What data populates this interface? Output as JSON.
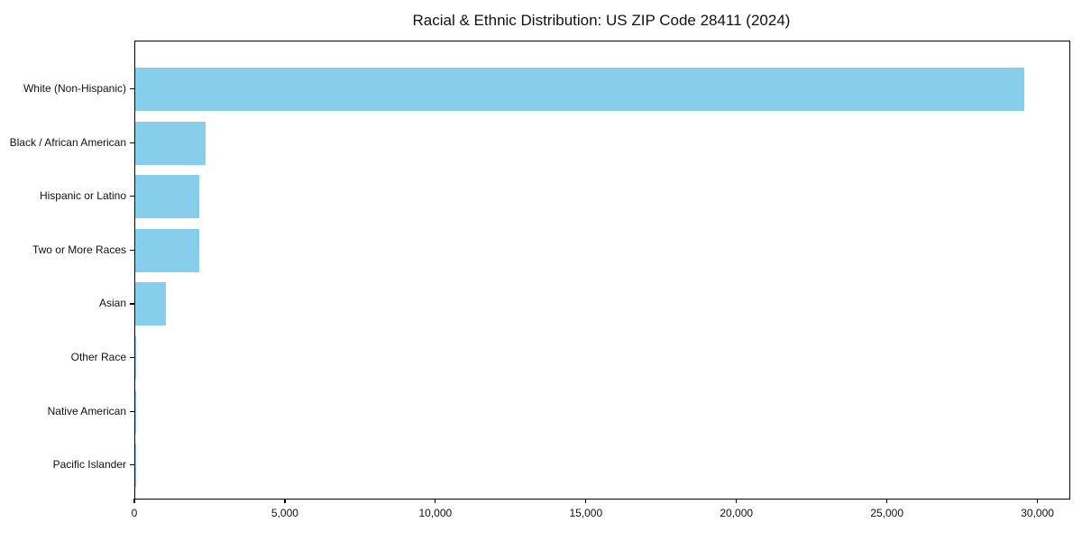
{
  "chart_data": {
    "type": "bar",
    "orientation": "horizontal",
    "title": "Racial & Ethnic Distribution: US ZIP Code 28411 (2024)",
    "categories": [
      "White (Non-Hispanic)",
      "Black / African American",
      "Hispanic or Latino",
      "Two or More Races",
      "Asian",
      "Other Race",
      "Native American",
      "Pacific Islander"
    ],
    "values": [
      29540,
      2340,
      2140,
      2120,
      1020,
      30,
      20,
      5
    ],
    "xlabel": "",
    "ylabel": "",
    "xlim": [
      0,
      31030
    ],
    "x_ticks": [
      0,
      5000,
      10000,
      15000,
      20000,
      25000,
      30000
    ],
    "x_tick_labels": [
      "0",
      "5,000",
      "10,000",
      "15,000",
      "20,000",
      "25,000",
      "30,000"
    ],
    "bar_color": "#87CEEB",
    "spine_color": "#000000",
    "grid": false,
    "legend": null
  }
}
